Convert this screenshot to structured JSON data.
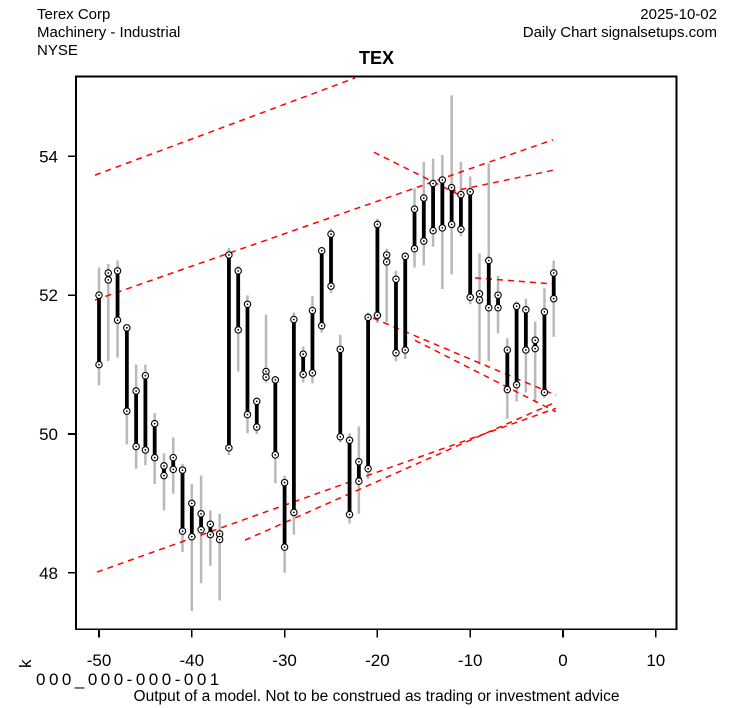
{
  "header": {
    "company": "Terex Corp",
    "industry": "Machinery - Industrial",
    "exchange": "NYSE",
    "date": "2025-10-02",
    "chart_type": "Daily Chart signalsetups.com"
  },
  "watermark": "000_000-000-001",
  "footer": "Output of a model. Not to be construed as trading or investment advice",
  "chart_data": {
    "type": "bar",
    "subtype": "high-low-body-bars-with-circled-ends",
    "title": "TEX",
    "xlabel": "",
    "ylabel": "k",
    "x_ticks": [
      -50,
      -40,
      -30,
      -20,
      -10,
      0,
      10
    ],
    "y_ticks": [
      48,
      50,
      52,
      54
    ],
    "xlim_days": [
      -52.6,
      12.2
    ],
    "ylim": [
      47.2,
      55.15
    ],
    "grid": "off",
    "colors": {
      "body": "#000000",
      "range": "#b9b9b9",
      "trendline": "#ff0000",
      "frame": "#000000",
      "marker_fill": "#ffffff"
    },
    "bars": [
      {
        "day": -50,
        "high": 52.4,
        "low": 50.7,
        "body_top": 52.0,
        "body_bottom": 51.0
      },
      {
        "day": -49,
        "high": 52.45,
        "low": 51.05,
        "body_top": 52.32,
        "body_bottom": 52.22
      },
      {
        "day": -48,
        "high": 52.5,
        "low": 51.1,
        "body_top": 52.35,
        "body_bottom": 51.64
      },
      {
        "day": -47,
        "high": 51.58,
        "low": 49.85,
        "body_top": 51.53,
        "body_bottom": 50.33
      },
      {
        "day": -46,
        "high": 51.0,
        "low": 49.5,
        "body_top": 50.62,
        "body_bottom": 49.82
      },
      {
        "day": -45,
        "high": 51.0,
        "low": 49.55,
        "body_top": 50.84,
        "body_bottom": 49.77
      },
      {
        "day": -44,
        "high": 50.3,
        "low": 49.28,
        "body_top": 50.15,
        "body_bottom": 49.66
      },
      {
        "day": -43,
        "high": 49.72,
        "low": 48.9,
        "body_top": 49.54,
        "body_bottom": 49.4
      },
      {
        "day": -42,
        "high": 49.95,
        "low": 49.14,
        "body_top": 49.66,
        "body_bottom": 49.49
      },
      {
        "day": -41,
        "high": 49.57,
        "low": 48.3,
        "body_top": 49.48,
        "body_bottom": 48.6
      },
      {
        "day": -40,
        "high": 49.28,
        "low": 47.45,
        "body_top": 49.0,
        "body_bottom": 48.52
      },
      {
        "day": -39,
        "high": 49.4,
        "low": 47.85,
        "body_top": 48.85,
        "body_bottom": 48.62
      },
      {
        "day": -38,
        "high": 48.9,
        "low": 48.1,
        "body_top": 48.7,
        "body_bottom": 48.55
      },
      {
        "day": -37,
        "high": 48.85,
        "low": 47.6,
        "body_top": 48.56,
        "body_bottom": 48.48
      },
      {
        "day": -36,
        "high": 52.68,
        "low": 49.7,
        "body_top": 52.58,
        "body_bottom": 49.8
      },
      {
        "day": -35,
        "high": 52.42,
        "low": 50.9,
        "body_top": 52.35,
        "body_bottom": 51.5
      },
      {
        "day": -34,
        "high": 52.0,
        "low": 50.01,
        "body_top": 51.87,
        "body_bottom": 50.28
      },
      {
        "day": -33,
        "high": 50.52,
        "low": 50.0,
        "body_top": 50.47,
        "body_bottom": 50.1
      },
      {
        "day": -32,
        "high": 51.72,
        "low": 50.74,
        "body_top": 50.9,
        "body_bottom": 50.82
      },
      {
        "day": -31,
        "high": 50.82,
        "low": 49.29,
        "body_top": 50.78,
        "body_bottom": 49.7
      },
      {
        "day": -30,
        "high": 49.4,
        "low": 48.0,
        "body_top": 49.3,
        "body_bottom": 48.37
      },
      {
        "day": -29,
        "high": 51.75,
        "low": 48.55,
        "body_top": 51.65,
        "body_bottom": 48.87
      },
      {
        "day": -28,
        "high": 51.26,
        "low": 50.74,
        "body_top": 51.15,
        "body_bottom": 50.86
      },
      {
        "day": -27,
        "high": 51.99,
        "low": 50.73,
        "body_top": 51.78,
        "body_bottom": 50.88
      },
      {
        "day": -26,
        "high": 52.69,
        "low": 51.46,
        "body_top": 52.64,
        "body_bottom": 51.56
      },
      {
        "day": -25,
        "high": 52.96,
        "low": 52.03,
        "body_top": 52.88,
        "body_bottom": 52.13
      },
      {
        "day": -24,
        "high": 51.43,
        "low": 49.88,
        "body_top": 51.22,
        "body_bottom": 49.96
      },
      {
        "day": -23,
        "high": 50.01,
        "low": 48.71,
        "body_top": 49.91,
        "body_bottom": 48.84
      },
      {
        "day": -22,
        "high": 50.11,
        "low": 48.85,
        "body_top": 49.6,
        "body_bottom": 49.32
      },
      {
        "day": -21,
        "high": 51.75,
        "low": 49.35,
        "body_top": 51.68,
        "body_bottom": 49.5
      },
      {
        "day": -20,
        "high": 53.1,
        "low": 51.6,
        "body_top": 53.02,
        "body_bottom": 51.71
      },
      {
        "day": -19,
        "high": 52.67,
        "low": 51.61,
        "body_top": 52.58,
        "body_bottom": 52.48
      },
      {
        "day": -18,
        "high": 52.35,
        "low": 51.05,
        "body_top": 52.23,
        "body_bottom": 51.17
      },
      {
        "day": -17,
        "high": 52.62,
        "low": 51.08,
        "body_top": 52.56,
        "body_bottom": 51.21
      },
      {
        "day": -16,
        "high": 53.54,
        "low": 52.4,
        "body_top": 53.24,
        "body_bottom": 52.67
      },
      {
        "day": -15,
        "high": 53.92,
        "low": 52.43,
        "body_top": 53.4,
        "body_bottom": 52.78
      },
      {
        "day": -14,
        "high": 53.97,
        "low": 52.7,
        "body_top": 53.61,
        "body_bottom": 52.93
      },
      {
        "day": -13,
        "high": 54.02,
        "low": 52.09,
        "body_top": 53.66,
        "body_bottom": 52.97
      },
      {
        "day": -12,
        "high": 54.88,
        "low": 52.3,
        "body_top": 53.55,
        "body_bottom": 53.02
      },
      {
        "day": -11,
        "high": 53.92,
        "low": 52.85,
        "body_top": 53.45,
        "body_bottom": 52.95
      },
      {
        "day": -10,
        "high": 53.71,
        "low": 51.87,
        "body_top": 53.49,
        "body_bottom": 51.97
      },
      {
        "day": -9,
        "high": 52.6,
        "low": 51.0,
        "body_top": 52.02,
        "body_bottom": 51.93
      },
      {
        "day": -8,
        "high": 53.9,
        "low": 51.05,
        "body_top": 52.5,
        "body_bottom": 51.82
      },
      {
        "day": -7,
        "high": 52.28,
        "low": 51.45,
        "body_top": 52.0,
        "body_bottom": 51.82
      },
      {
        "day": -6,
        "high": 51.38,
        "low": 50.22,
        "body_top": 51.21,
        "body_bottom": 50.64
      },
      {
        "day": -5,
        "high": 51.91,
        "low": 50.47,
        "body_top": 51.84,
        "body_bottom": 50.71
      },
      {
        "day": -4,
        "high": 51.95,
        "low": 50.6,
        "body_top": 51.79,
        "body_bottom": 51.21
      },
      {
        "day": -3,
        "high": 51.62,
        "low": 50.45,
        "body_top": 51.35,
        "body_bottom": 51.23
      },
      {
        "day": -2,
        "high": 52.1,
        "low": 50.52,
        "body_top": 51.76,
        "body_bottom": 50.6
      },
      {
        "day": -1,
        "high": 52.5,
        "low": 51.4,
        "body_top": 52.32,
        "body_bottom": 51.95
      }
    ],
    "trendlines": [
      {
        "name": "upper-left-rising",
        "d1": -50.43,
        "p1": 53.73,
        "d2": -22.41,
        "p2": 55.13
      },
      {
        "name": "mid-rising-channel",
        "d1": -50.43,
        "p1": 51.93,
        "d2": -1.08,
        "p2": 54.24
      },
      {
        "name": "right-gentle-rising",
        "d1": -12.18,
        "p1": 53.49,
        "d2": -1.08,
        "p2": 53.8
      },
      {
        "name": "apex-falling",
        "d1": -20.37,
        "p1": 54.06,
        "d2": -11.1,
        "p2": 53.44
      },
      {
        "name": "mid-falling-1",
        "d1": -20.47,
        "p1": 51.67,
        "d2": -0.76,
        "p2": 50.56
      },
      {
        "name": "mid-falling-2",
        "d1": -15.95,
        "p1": 51.35,
        "d2": -0.76,
        "p2": 50.32
      },
      {
        "name": "bottom-support-long",
        "d1": -50.22,
        "p1": 48.01,
        "d2": -0.76,
        "p2": 50.37
      },
      {
        "name": "bottom-support-2",
        "d1": -34.27,
        "p1": 48.47,
        "d2": -0.76,
        "p2": 50.46
      },
      {
        "name": "right-flat",
        "d1": -9.48,
        "p1": 52.25,
        "d2": -0.86,
        "p2": 52.16
      }
    ]
  }
}
